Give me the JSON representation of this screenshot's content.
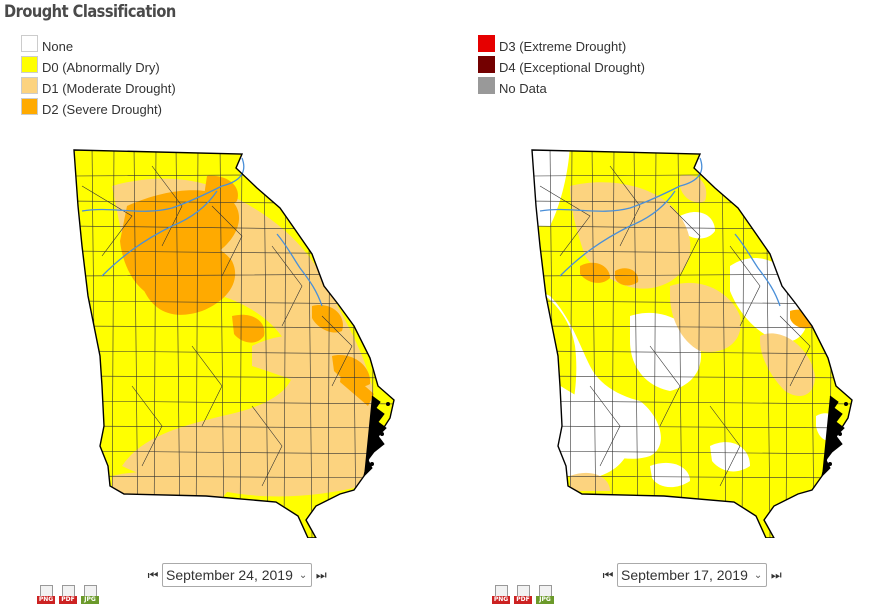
{
  "legend": {
    "title": "Drought Classification",
    "left": [
      {
        "label": "None",
        "color": "#ffffff"
      },
      {
        "label": "D0 (Abnormally Dry)",
        "color": "#ffff00"
      },
      {
        "label": "D1 (Moderate Drought)",
        "color": "#fcd37f"
      },
      {
        "label": "D2 (Severe Drought)",
        "color": "#ffaa00"
      }
    ],
    "right": [
      {
        "label": "D3 (Extreme Drought)",
        "color": "#e60000"
      },
      {
        "label": "D4 (Exceptional Drought)",
        "color": "#730000"
      },
      {
        "label": "No Data",
        "color": "#999999"
      }
    ]
  },
  "maps": [
    {
      "date": "September 24, 2019",
      "prev_icon": "prev-arrows-icon",
      "next_icon": "next-arrows-icon"
    },
    {
      "date": "September 17, 2019",
      "prev_icon": "prev-arrows-icon",
      "next_icon": "next-arrows-icon"
    }
  ],
  "downloads": [
    {
      "label": "PNG",
      "color": "#cc2222"
    },
    {
      "label": "PDF",
      "color": "#cc2222"
    },
    {
      "label": "JPG",
      "color": "#6b9a2a"
    }
  ],
  "colors": {
    "river": "#4a8fd8",
    "county_border": "#333333",
    "state_border": "#000000"
  }
}
